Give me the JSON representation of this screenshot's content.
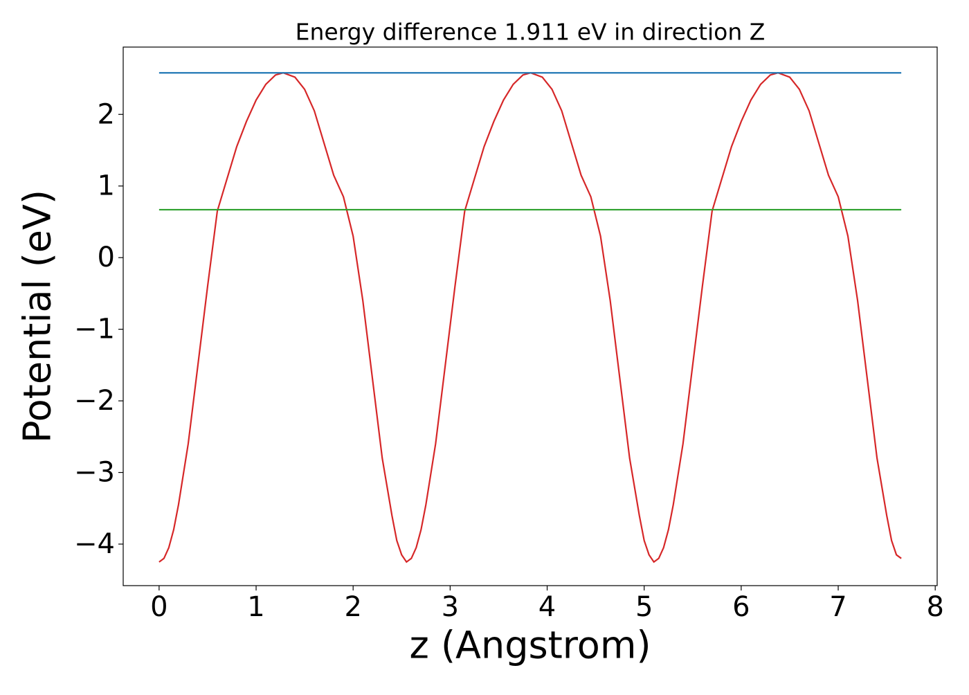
{
  "chart_data": {
    "type": "line",
    "title": "Energy difference 1.911 eV in direction Z",
    "xlabel": "z (Angstrom)",
    "ylabel": "Potential (eV)",
    "xlim": [
      -0.37,
      8.02
    ],
    "ylim": [
      -4.58,
      2.94
    ],
    "xticks": [
      0,
      1,
      2,
      3,
      4,
      5,
      6,
      7,
      8
    ],
    "yticks": [
      {
        "value": -4,
        "label": "−4"
      },
      {
        "value": -3,
        "label": "−3"
      },
      {
        "value": -2,
        "label": "−2"
      },
      {
        "value": -1,
        "label": "−1"
      },
      0,
      1,
      2
    ],
    "grid": false,
    "series": [
      {
        "color": "#d62728",
        "x": [
          0,
          0.05,
          0.1,
          0.15,
          0.2,
          0.3,
          0.4,
          0.5,
          0.6,
          0.7,
          0.8,
          0.9,
          1.0,
          1.1,
          1.2,
          1.28,
          1.4,
          1.5,
          1.6,
          1.7,
          1.8,
          1.9,
          2.0,
          2.1,
          2.2,
          2.3,
          2.4,
          2.45,
          2.5,
          2.55,
          2.6,
          2.65,
          2.7,
          2.75,
          2.85,
          2.95,
          3.05,
          3.15,
          3.25,
          3.35,
          3.45,
          3.55,
          3.65,
          3.75,
          3.83,
          3.95,
          4.05,
          4.15,
          4.25,
          4.35,
          4.45,
          4.55,
          4.65,
          4.75,
          4.85,
          4.95,
          5.0,
          5.05,
          5.1,
          5.15,
          5.2,
          5.25,
          5.3,
          5.4,
          5.5,
          5.6,
          5.7,
          5.8,
          5.9,
          6.0,
          6.1,
          6.2,
          6.3,
          6.38,
          6.5,
          6.6,
          6.7,
          6.8,
          6.9,
          7.0,
          7.1,
          7.2,
          7.3,
          7.4,
          7.5,
          7.55,
          7.6,
          7.65
        ],
        "values": [
          -4.25,
          -4.2,
          -4.05,
          -3.8,
          -3.45,
          -2.6,
          -1.5,
          -0.4,
          0.65,
          1.1,
          1.55,
          1.9,
          2.2,
          2.42,
          2.55,
          2.58,
          2.52,
          2.35,
          2.05,
          1.6,
          1.15,
          0.85,
          0.3,
          -0.6,
          -1.7,
          -2.8,
          -3.6,
          -3.95,
          -4.15,
          -4.25,
          -4.2,
          -4.05,
          -3.8,
          -3.45,
          -2.6,
          -1.5,
          -0.4,
          0.65,
          1.1,
          1.55,
          1.9,
          2.2,
          2.42,
          2.55,
          2.58,
          2.52,
          2.35,
          2.05,
          1.6,
          1.15,
          0.85,
          0.3,
          -0.6,
          -1.7,
          -2.8,
          -3.6,
          -3.95,
          -4.15,
          -4.25,
          -4.2,
          -4.05,
          -3.8,
          -3.45,
          -2.6,
          -1.5,
          -0.4,
          0.65,
          1.1,
          1.55,
          1.9,
          2.2,
          2.42,
          2.55,
          2.58,
          2.52,
          2.35,
          2.05,
          1.6,
          1.15,
          0.85,
          0.3,
          -0.6,
          -1.7,
          -2.8,
          -3.6,
          -3.95,
          -4.15,
          -4.2
        ]
      },
      {
        "color": "#1f77b4",
        "x": [
          0,
          7.65
        ],
        "values": [
          2.58,
          2.58
        ]
      },
      {
        "color": "#2ca02c",
        "x": [
          0,
          7.65
        ],
        "values": [
          0.669,
          0.669
        ]
      }
    ]
  }
}
